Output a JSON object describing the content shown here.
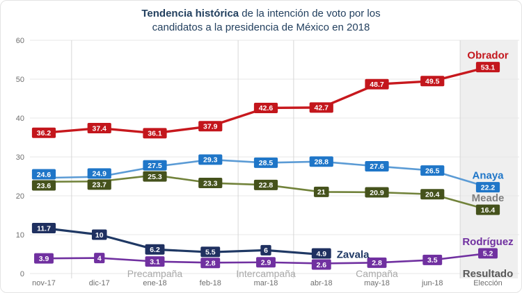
{
  "title": {
    "bold": "Tendencia histórica",
    "rest": " de la intención de voto por los",
    "line2": "candidatos a la presidencia de México en 2018"
  },
  "chart_data": {
    "type": "line",
    "title": "Tendencia histórica de la intención de voto por los candidatos a la presidencia de México en 2018",
    "categories": [
      "nov-17",
      "dic-17",
      "ene-18",
      "feb-18",
      "mar-18",
      "abr-18",
      "may-18",
      "jun-18",
      "Elección"
    ],
    "ylim": [
      0,
      60
    ],
    "yticks": [
      0,
      10,
      20,
      30,
      40,
      50,
      60
    ],
    "grid": true,
    "legend_position": "end-of-line-labels",
    "series": [
      {
        "name": "Obrador",
        "box_color": "#c3161c",
        "line_color": "#c7181d",
        "name_color": "#c3161c",
        "values": [
          36.2,
          37.4,
          36.1,
          37.9,
          42.6,
          42.7,
          48.7,
          49.5,
          53.1
        ]
      },
      {
        "name": "Anaya",
        "box_color": "#1f76c8",
        "line_color": "#5b9bd5",
        "name_color": "#1f76c8",
        "values": [
          24.6,
          24.9,
          27.5,
          29.3,
          28.5,
          28.8,
          27.6,
          26.5,
          22.2
        ]
      },
      {
        "name": "Meade",
        "box_color": "#45521c",
        "line_color": "#71823a",
        "name_color": "#7f7f7f",
        "values": [
          23.6,
          23.7,
          25.3,
          23.3,
          22.8,
          21,
          20.9,
          20.4,
          16.4
        ]
      },
      {
        "name": "Zavala",
        "box_color": "#1f3060",
        "line_color": "#1f3864",
        "name_color": "#1f3864",
        "values": [
          11.7,
          10,
          6.2,
          5.5,
          6,
          4.9,
          null,
          null,
          null
        ]
      },
      {
        "name": "Rodríguez",
        "box_color": "#7030a0",
        "line_color": "#7030a0",
        "name_color": "#7030a0",
        "values": [
          3.9,
          4,
          3.1,
          2.8,
          2.9,
          2.6,
          2.8,
          3.5,
          5.2
        ]
      }
    ],
    "phases": [
      {
        "label": "Precampaña",
        "center_index": 2,
        "emphasis": false
      },
      {
        "label": "Intercampaña",
        "center_index": 4,
        "emphasis": false
      },
      {
        "label": "Campaña",
        "center_index": 6,
        "emphasis": false
      },
      {
        "label": "Resultado",
        "center_index": 8,
        "emphasis": true
      }
    ],
    "phase_boundaries": [
      0.5,
      3.5,
      4.5,
      7.5
    ],
    "shaded_region": {
      "from_index": 7.5,
      "label": "Elección",
      "color": "#efefef"
    },
    "colors": {
      "gridline": "#e7e7e7",
      "boundary_line": "#d6d6d6",
      "axis_label": "#6e6e6e",
      "phase_label": "#a9a9a9",
      "phase_label_emphasis": "#595959",
      "title": "#23405f"
    }
  }
}
